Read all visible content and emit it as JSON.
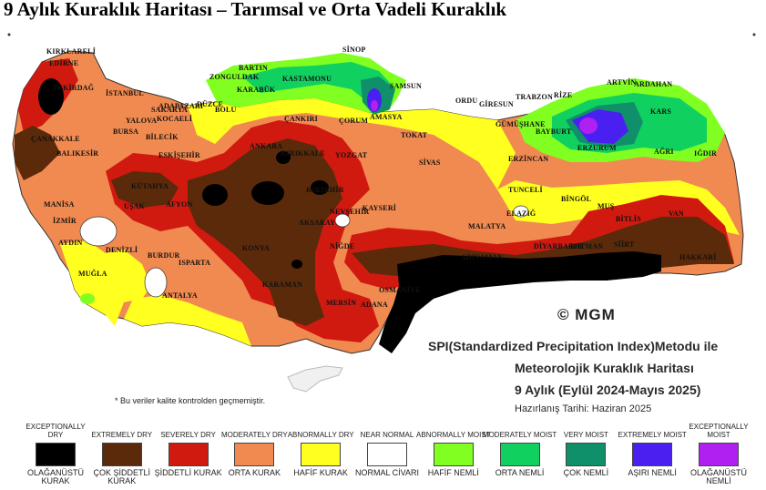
{
  "title": "9 Aylık Kuraklık Haritası – Tarımsal ve Orta Vadeli Kuraklık",
  "watermark": "© MGM",
  "map_info": {
    "line1": "SPI(Standardized Precipitation Index)Metodu ile",
    "line2": "Meteorolojik Kuraklık Haritası",
    "line3": "9 Aylık (Eylül 2024-Mayıs 2025)",
    "line4": "Hazırlanış Tarihi: Haziran 2025"
  },
  "quality_note": "* Bu veriler kalite kontrolden geçmemiştir.",
  "cities": {
    "kirklareli": "KIRKLARELİ",
    "edirne": "EDİRNE",
    "tekirdag": "TEKİRDAĞ",
    "istanbul": "İSTANBUL",
    "canakkale": "ÇANAKKALE",
    "balikesir": "BALIKESİR",
    "manisa": "MANİSA",
    "izmir": "İZMİR",
    "aydin": "AYDIN",
    "mugla": "MUĞLA",
    "denizli": "DENİZLİ",
    "usak": "UŞAK",
    "kutahya": "KÜTAHYA",
    "bursa": "BURSA",
    "yalova": "YALOVA",
    "bilecik": "BİLECİK",
    "eskisehir": "ESKİŞEHİR",
    "afyon": "AFYON",
    "burdur": "BURDUR",
    "isparta": "ISPARTA",
    "antalya": "ANTALYA",
    "sakarya": "SAKARYA",
    "kocaeli": "KOCAELİ",
    "duzce": "DÜZCE",
    "adapazari": "ADAPAZARI",
    "bolu": "BOLU",
    "zonguldak": "ZONGULDAK",
    "bartin": "BARTIN",
    "karabuk": "KARABÜK",
    "kastamonu": "KASTAMONU",
    "sinop": "SİNOP",
    "samsun": "SAMSUN",
    "amasya": "AMASYA",
    "corum": "ÇORUM",
    "cankiri": "ÇANKIRI",
    "ankara": "ANKARA",
    "kirikkale": "KIRIKKALE",
    "kirsehir": "KIRŞEHİR",
    "yozgat": "YOZGAT",
    "tokat": "TOKAT",
    "sivas": "SİVAS",
    "ordu": "ORDU",
    "giresun": "GİRESUN",
    "trabzon": "TRABZON",
    "rize": "RİZE",
    "artvin": "ARTVİN",
    "ardahan": "ARDAHAN",
    "kars": "KARS",
    "igdir": "IĞDIR",
    "agri": "AĞRI",
    "erzurum": "ERZURUM",
    "bayburt": "BAYBURT",
    "gumushane": "GÜMÜŞHANE",
    "erzincan": "ERZİNCAN",
    "tunceli": "TUNCELİ",
    "bingol": "BİNGÖL",
    "mus": "MUŞ",
    "bitlis": "BİTLİS",
    "van": "VAN",
    "hakkari": "HAKKARİ",
    "siirt": "SİİRT",
    "batman": "BATMAN",
    "diyarbakir": "DİYARBAKIR",
    "elazig": "ELAZIĞ",
    "malatya": "MALATYA",
    "adiyaman": "ADIYAMAN",
    "kayseri": "KAYSERİ",
    "nevsehir": "NEVŞEHİR",
    "aksaray": "AKSARAY",
    "nigde": "NİĞDE",
    "konya": "KONYA",
    "karaman": "KARAMAN",
    "mersin": "MERSİN",
    "adana": "ADANA",
    "osmaniye": "OSMANİYE"
  },
  "legend": [
    {
      "en": "EXCEPTIONALLY DRY",
      "tr": "OLAĞANÜSTÜ KURAK",
      "color": "#000000"
    },
    {
      "en": "EXTREMELY DRY",
      "tr": "ÇOK ŞİDDETLİ KURAK",
      "color": "#5a2a0a"
    },
    {
      "en": "SEVERELY DRY",
      "tr": "ŞİDDETLİ KURAK",
      "color": "#d01a10"
    },
    {
      "en": "MODERATELY DRY",
      "tr": "ORTA KURAK",
      "color": "#f08a50"
    },
    {
      "en": "ABNORMALLY DRY",
      "tr": "HAFİF KURAK",
      "color": "#ffff20"
    },
    {
      "en": "NEAR NORMAL",
      "tr": "NORMAL CİVARI",
      "color": "#ffffff"
    },
    {
      "en": "ABNORMALLY MOIST",
      "tr": "HAFİF NEMLİ",
      "color": "#80ff20"
    },
    {
      "en": "MODERATELY MOIST",
      "tr": "ORTA NEMLİ",
      "color": "#10d060"
    },
    {
      "en": "VERY MOIST",
      "tr": "ÇOK NEMLİ",
      "color": "#10906a"
    },
    {
      "en": "EXTREMELY MOIST",
      "tr": "AŞIRI NEMLİ",
      "color": "#4a20f0"
    },
    {
      "en": "EXCEPTIONALLY MOIST",
      "tr": "OLAĞANÜSTÜ NEMLİ",
      "color": "#b020f0"
    }
  ]
}
